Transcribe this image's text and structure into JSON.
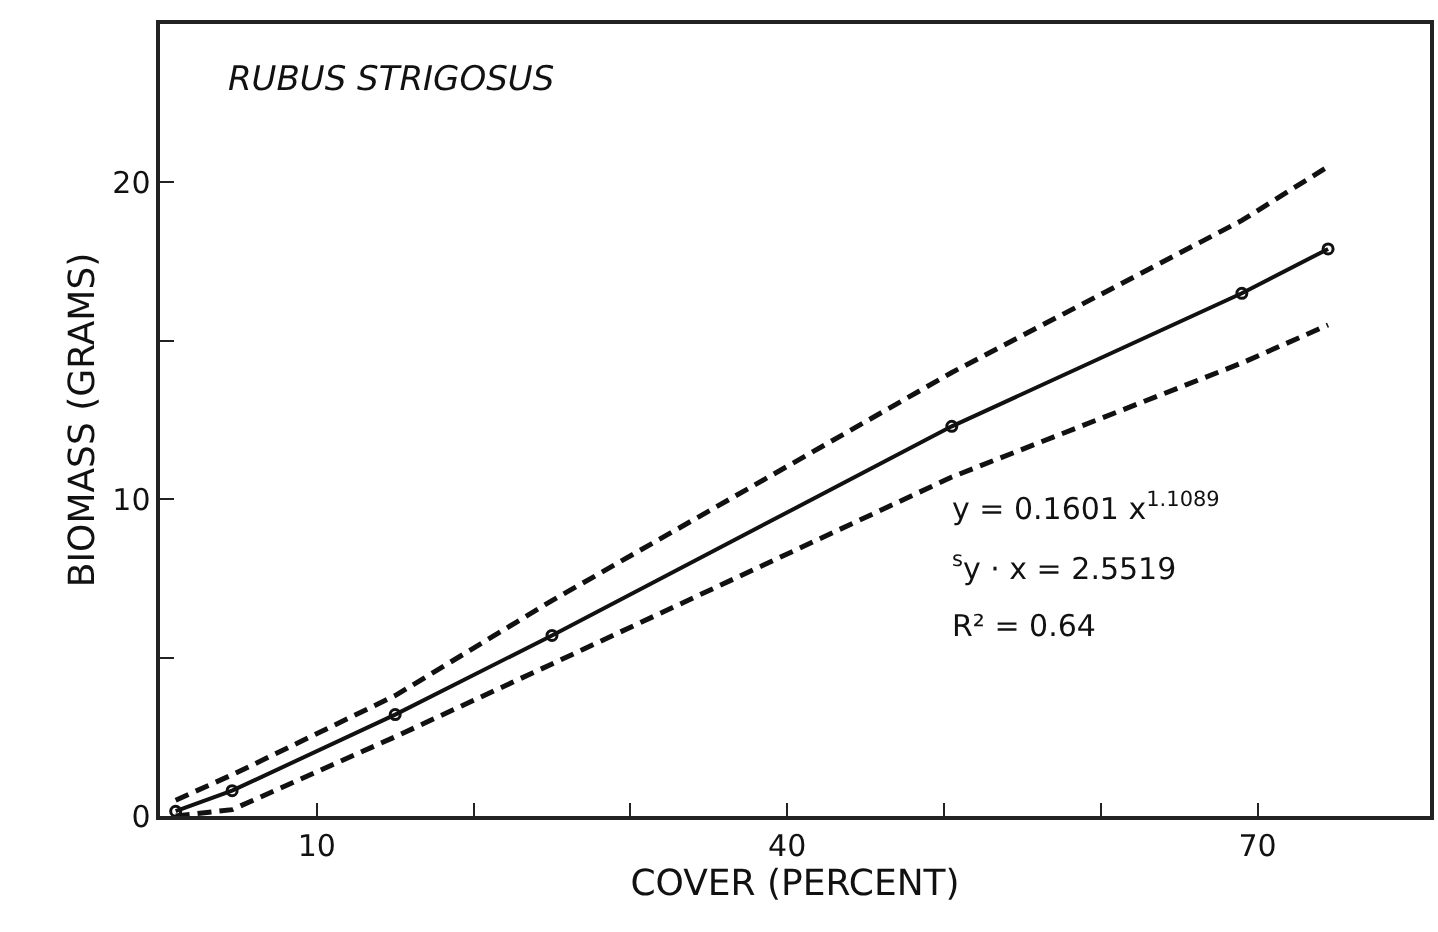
{
  "chart_data": {
    "type": "line",
    "title": "RUBUS STRIGOSUS",
    "xlabel": "COVER (PERCENT)",
    "ylabel": "BIOMASS (GRAMS)",
    "x": [
      1,
      4.6,
      15,
      25,
      50.5,
      69,
      74.5
    ],
    "series": [
      {
        "color": "#111111",
        "values": [
          0.15,
          0.8,
          3.2,
          5.7,
          12.3,
          16.5,
          17.9
        ]
      },
      {
        "color": "#111111",
        "values": [
          0.5,
          1.3,
          3.8,
          6.8,
          14.0,
          18.8,
          20.5
        ],
        "line_style": "dashed",
        "marker": "none"
      },
      {
        "color": "#111111",
        "values": [
          0,
          0.2,
          2.5,
          4.8,
          10.7,
          14.3,
          15.5
        ],
        "line_style": "dashed",
        "marker": "none"
      }
    ],
    "xlim": [
      0,
      81
    ],
    "ylim": [
      0,
      25
    ],
    "xticks": [
      {
        "value": 10,
        "label": "10"
      },
      {
        "value": 20,
        "label": null
      },
      {
        "value": 30,
        "label": null
      },
      {
        "value": 40,
        "label": "40"
      },
      {
        "value": 50,
        "label": null
      },
      {
        "value": 60,
        "label": null
      },
      {
        "value": 70,
        "label": "70"
      }
    ],
    "yticks": [
      0,
      {
        "value": 5,
        "label": null
      },
      10,
      {
        "value": 15,
        "label": null
      },
      20
    ],
    "annotations": [
      "y = 0.1601 x$^{1.1089}$",
      "$^{s}$y · x = 2.5519",
      "R² = 0.64"
    ],
    "marker": "circle",
    "line_style": "solid"
  }
}
